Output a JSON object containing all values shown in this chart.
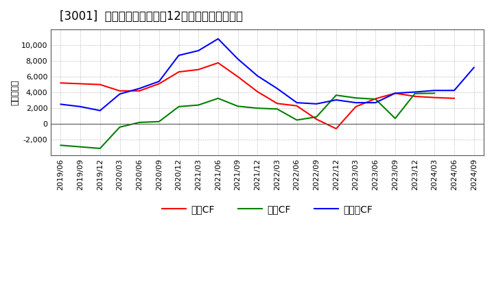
{
  "title": "[3001]  キャッシュフローの12か月移動合計の推移",
  "ylabel": "（百万円）",
  "x_labels": [
    "2019/06",
    "2019/09",
    "2019/12",
    "2020/03",
    "2020/06",
    "2020/09",
    "2020/12",
    "2021/03",
    "2021/06",
    "2021/09",
    "2021/12",
    "2022/03",
    "2022/06",
    "2022/09",
    "2022/12",
    "2023/03",
    "2023/06",
    "2023/09",
    "2023/12",
    "2024/03",
    "2024/06",
    "2024/09"
  ],
  "operating_cf": [
    5200,
    5100,
    5000,
    4200,
    4200,
    5100,
    6600,
    6900,
    7750,
    6000,
    4100,
    2600,
    2300,
    600,
    -600,
    2200,
    3200,
    3900,
    3500,
    3350,
    3250,
    null
  ],
  "investing_cf": [
    -2700,
    -2900,
    -3100,
    -400,
    200,
    300,
    2200,
    2400,
    3250,
    2250,
    2000,
    1900,
    500,
    900,
    3650,
    3300,
    3150,
    700,
    3850,
    3900,
    null,
    null
  ],
  "free_cf": [
    2500,
    2200,
    1700,
    3800,
    4500,
    5400,
    8700,
    9300,
    10800,
    8250,
    6100,
    4500,
    2700,
    2550,
    3050,
    2700,
    2700,
    3900,
    4050,
    4250,
    4250,
    7150
  ],
  "operating_color": "#ff0000",
  "investing_color": "#008000",
  "free_color": "#0000ff",
  "ylim": [
    -4000,
    12000
  ],
  "yticks": [
    -2000,
    0,
    2000,
    4000,
    6000,
    8000,
    10000
  ],
  "background_color": "#ffffff",
  "grid_color": "#b0b0b0",
  "title_fontsize": 12,
  "axis_fontsize": 8,
  "legend_fontsize": 10,
  "legend_labels": [
    "営業CF",
    "投資CF",
    "フリーCF"
  ]
}
